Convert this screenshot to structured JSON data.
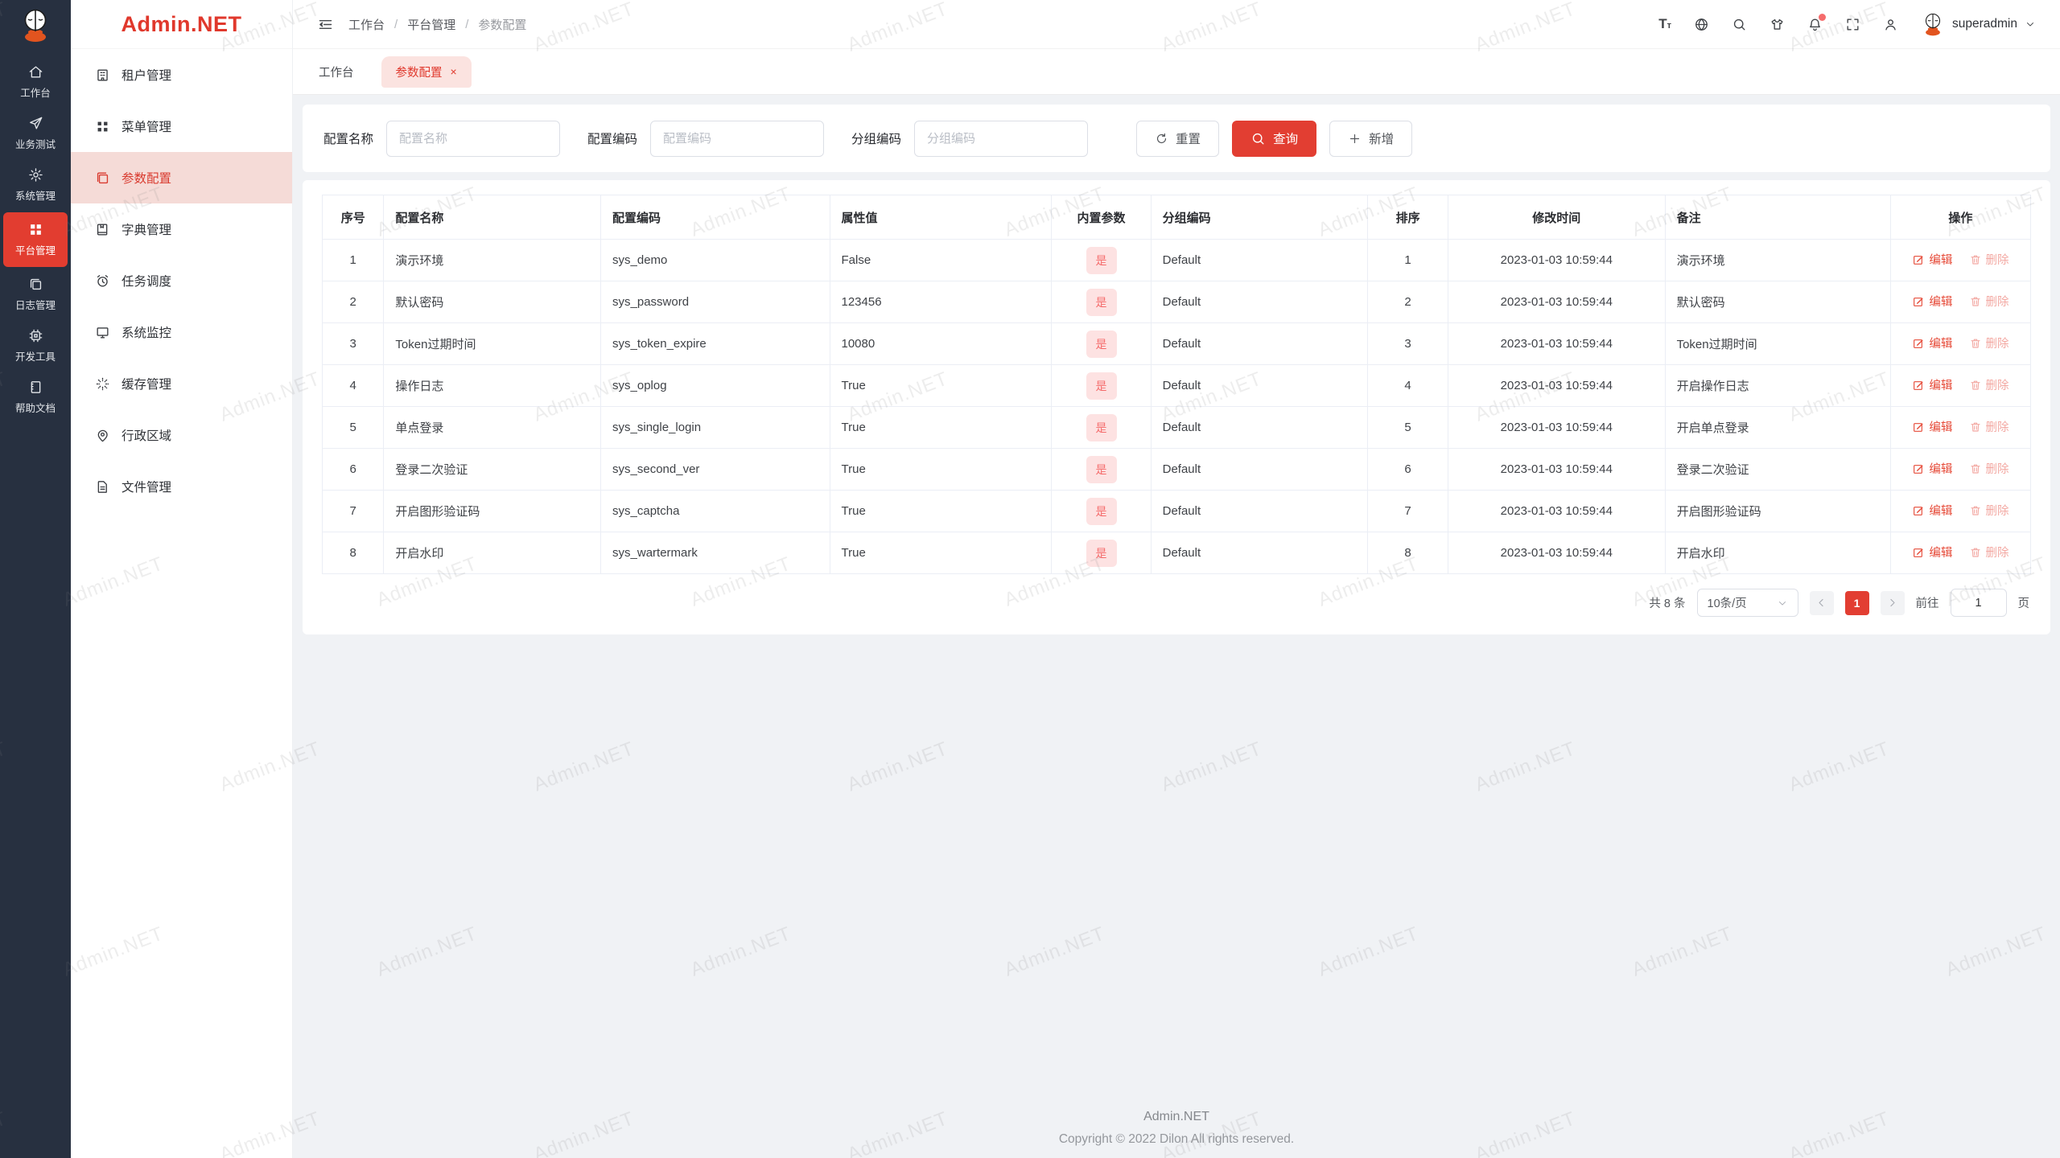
{
  "watermark": "Admin.NET",
  "colors": {
    "primary": "#e23d30",
    "rail_bg": "#273040",
    "menu_active_bg": "#f5dbd7",
    "badge_bg": "#fde2e2",
    "badge_text": "#f56c6c"
  },
  "rail": {
    "items": [
      {
        "label": "工作台",
        "icon": "home-icon",
        "active": false
      },
      {
        "label": "业务测试",
        "icon": "send-icon",
        "active": false
      },
      {
        "label": "系统管理",
        "icon": "gear-icon",
        "active": false
      },
      {
        "label": "平台管理",
        "icon": "grid-icon",
        "active": true
      },
      {
        "label": "日志管理",
        "icon": "copy-icon",
        "active": false
      },
      {
        "label": "开发工具",
        "icon": "chip-icon",
        "active": false
      },
      {
        "label": "帮助文档",
        "icon": "notebook-icon",
        "active": false
      }
    ]
  },
  "sidebar": {
    "logo_text": "Admin.NET",
    "items": [
      {
        "label": "租户管理",
        "icon": "building-icon",
        "active": false
      },
      {
        "label": "菜单管理",
        "icon": "menu-grid-icon",
        "active": false
      },
      {
        "label": "参数配置",
        "icon": "config-icon",
        "active": true
      },
      {
        "label": "字典管理",
        "icon": "dictionary-icon",
        "active": false
      },
      {
        "label": "任务调度",
        "icon": "alarm-icon",
        "active": false
      },
      {
        "label": "系统监控",
        "icon": "monitor-icon",
        "active": false
      },
      {
        "label": "缓存管理",
        "icon": "loading-icon",
        "active": false
      },
      {
        "label": "行政区域",
        "icon": "location-icon",
        "active": false
      },
      {
        "label": "文件管理",
        "icon": "file-icon",
        "active": false
      }
    ]
  },
  "header": {
    "breadcrumb": [
      "工作台",
      "平台管理",
      "参数配置"
    ],
    "user": "superadmin"
  },
  "tabs": {
    "first": "工作台",
    "active": "参数配置",
    "close": "×"
  },
  "search": {
    "fields": [
      {
        "label": "配置名称",
        "placeholder": "配置名称",
        "value": ""
      },
      {
        "label": "配置编码",
        "placeholder": "配置编码",
        "value": ""
      },
      {
        "label": "分组编码",
        "placeholder": "分组编码",
        "value": ""
      }
    ],
    "reset_label": "重置",
    "query_label": "查询",
    "add_label": "新增"
  },
  "table": {
    "columns": [
      "序号",
      "配置名称",
      "配置编码",
      "属性值",
      "内置参数",
      "分组编码",
      "排序",
      "修改时间",
      "备注",
      "操作"
    ],
    "edit_label": "编辑",
    "delete_label": "删除",
    "builtin_yes": "是",
    "rows": [
      {
        "no": "1",
        "name": "演示环境",
        "code": "sys_demo",
        "value": "False",
        "builtin": "是",
        "group": "Default",
        "order": "1",
        "time": "2023-01-03 10:59:44",
        "remark": "演示环境"
      },
      {
        "no": "2",
        "name": "默认密码",
        "code": "sys_password",
        "value": "123456",
        "builtin": "是",
        "group": "Default",
        "order": "2",
        "time": "2023-01-03 10:59:44",
        "remark": "默认密码"
      },
      {
        "no": "3",
        "name": "Token过期时间",
        "code": "sys_token_expire",
        "value": "10080",
        "builtin": "是",
        "group": "Default",
        "order": "3",
        "time": "2023-01-03 10:59:44",
        "remark": "Token过期时间"
      },
      {
        "no": "4",
        "name": "操作日志",
        "code": "sys_oplog",
        "value": "True",
        "builtin": "是",
        "group": "Default",
        "order": "4",
        "time": "2023-01-03 10:59:44",
        "remark": "开启操作日志"
      },
      {
        "no": "5",
        "name": "单点登录",
        "code": "sys_single_login",
        "value": "True",
        "builtin": "是",
        "group": "Default",
        "order": "5",
        "time": "2023-01-03 10:59:44",
        "remark": "开启单点登录"
      },
      {
        "no": "6",
        "name": "登录二次验证",
        "code": "sys_second_ver",
        "value": "True",
        "builtin": "是",
        "group": "Default",
        "order": "6",
        "time": "2023-01-03 10:59:44",
        "remark": "登录二次验证"
      },
      {
        "no": "7",
        "name": "开启图形验证码",
        "code": "sys_captcha",
        "value": "True",
        "builtin": "是",
        "group": "Default",
        "order": "7",
        "time": "2023-01-03 10:59:44",
        "remark": "开启图形验证码"
      },
      {
        "no": "8",
        "name": "开启水印",
        "code": "sys_wartermark",
        "value": "True",
        "builtin": "是",
        "group": "Default",
        "order": "8",
        "time": "2023-01-03 10:59:44",
        "remark": "开启水印"
      }
    ]
  },
  "pagination": {
    "total": "共 8 条",
    "page_size": "10条/页",
    "current_page": "1",
    "goto_label": "前往",
    "goto_value": "1",
    "page_unit": "页"
  },
  "footer": {
    "title": "Admin.NET",
    "copyright": "Copyright © 2022 Dilon All rights reserved."
  }
}
